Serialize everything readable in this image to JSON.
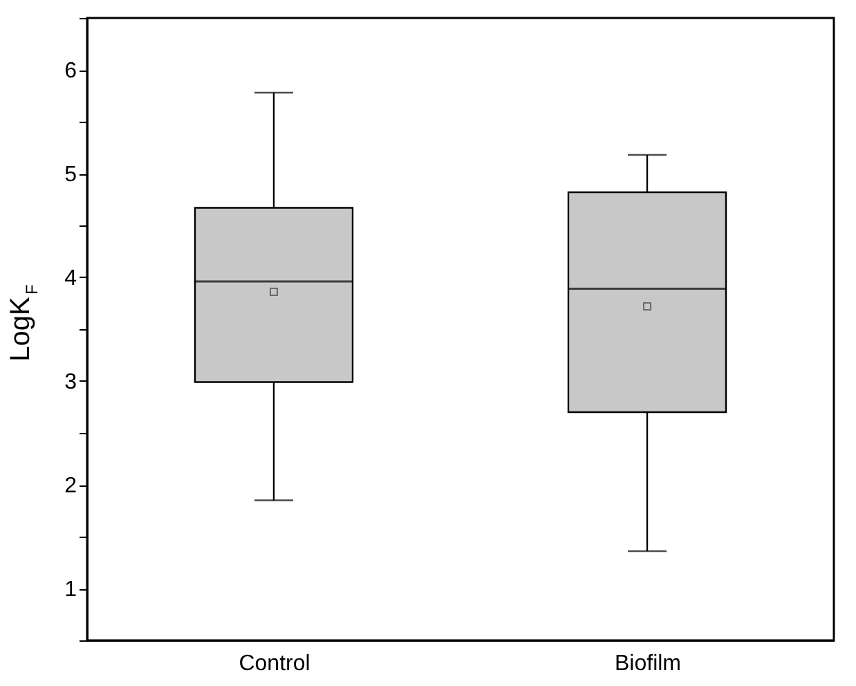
{
  "chart_data": {
    "type": "box",
    "ylabel": "LogK$_{F}$",
    "categories": [
      "Control",
      "Biofilm"
    ],
    "boxes": [
      {
        "low": 1.85,
        "q1": 2.99,
        "median": 3.96,
        "q3": 4.67,
        "high": 5.78,
        "mean": 3.86
      },
      {
        "low": 1.36,
        "q1": 2.7,
        "median": 3.89,
        "q3": 4.82,
        "high": 5.18,
        "mean": 3.72
      }
    ],
    "color": "#c8c8c8",
    "ylim": [
      0.5,
      6.5
    ],
    "yticks": [
      {
        "value": 0.5,
        "label": null
      },
      1,
      {
        "value": 1.5,
        "label": null
      },
      2,
      {
        "value": 2.5,
        "label": null
      },
      3,
      {
        "value": 3.5,
        "label": null
      },
      4,
      {
        "value": 4.5,
        "label": null
      },
      5,
      {
        "value": 5.5,
        "label": null
      },
      6,
      {
        "value": 6.5,
        "label": null
      }
    ],
    "grid": false
  }
}
